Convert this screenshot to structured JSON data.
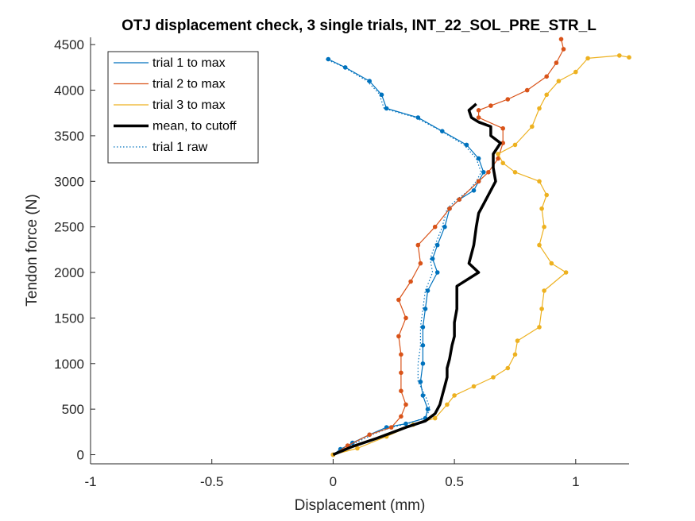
{
  "chart_data": {
    "type": "line",
    "title": "OTJ displacement check, 3 single trials, INT_22_SOL_PRE_STR_L",
    "xlabel": "Displacement (mm)",
    "ylabel": "Tendon force (N)",
    "xlim": [
      -1,
      1.22
    ],
    "ylim": [
      -100,
      4580
    ],
    "xticks": [
      -1,
      -0.5,
      0,
      0.5,
      1
    ],
    "xtick_labels": [
      "-1",
      "-0.5",
      "0",
      "0.5",
      "1"
    ],
    "yticks": [
      0,
      500,
      1000,
      1500,
      2000,
      2500,
      3000,
      3500,
      4000,
      4500
    ],
    "ytick_labels": [
      "0",
      "500",
      "1000",
      "1500",
      "2000",
      "2500",
      "3000",
      "3500",
      "4000",
      "4500"
    ],
    "grid": false,
    "legend_position": "top-left",
    "series": [
      {
        "name": "trial 1 to max",
        "color": "#0072BD",
        "style": "line-markers",
        "points": [
          [
            0,
            0
          ],
          [
            0.03,
            60
          ],
          [
            0.08,
            130
          ],
          [
            0.15,
            220
          ],
          [
            0.22,
            300
          ],
          [
            0.3,
            340
          ],
          [
            0.38,
            400
          ],
          [
            0.39,
            500
          ],
          [
            0.37,
            650
          ],
          [
            0.36,
            800
          ],
          [
            0.37,
            1000
          ],
          [
            0.37,
            1200
          ],
          [
            0.37,
            1400
          ],
          [
            0.38,
            1600
          ],
          [
            0.39,
            1800
          ],
          [
            0.43,
            2000
          ],
          [
            0.41,
            2150
          ],
          [
            0.43,
            2300
          ],
          [
            0.46,
            2500
          ],
          [
            0.48,
            2700
          ],
          [
            0.52,
            2800
          ],
          [
            0.58,
            2900
          ],
          [
            0.6,
            3000
          ],
          [
            0.62,
            3100
          ],
          [
            0.6,
            3250
          ],
          [
            0.55,
            3400
          ],
          [
            0.45,
            3550
          ],
          [
            0.35,
            3700
          ],
          [
            0.22,
            3800
          ],
          [
            0.2,
            3950
          ],
          [
            0.15,
            4100
          ],
          [
            0.05,
            4250
          ],
          [
            -0.02,
            4340
          ]
        ]
      },
      {
        "name": "trial 2 to max",
        "color": "#D95319",
        "style": "line-markers",
        "points": [
          [
            0,
            0
          ],
          [
            0.06,
            100
          ],
          [
            0.15,
            220
          ],
          [
            0.24,
            300
          ],
          [
            0.28,
            420
          ],
          [
            0.3,
            550
          ],
          [
            0.28,
            700
          ],
          [
            0.28,
            900
          ],
          [
            0.28,
            1100
          ],
          [
            0.27,
            1300
          ],
          [
            0.3,
            1500
          ],
          [
            0.27,
            1700
          ],
          [
            0.32,
            1900
          ],
          [
            0.36,
            2100
          ],
          [
            0.35,
            2300
          ],
          [
            0.42,
            2500
          ],
          [
            0.48,
            2700
          ],
          [
            0.52,
            2800
          ],
          [
            0.6,
            3000
          ],
          [
            0.64,
            3100
          ],
          [
            0.68,
            3250
          ],
          [
            0.7,
            3420
          ],
          [
            0.7,
            3580
          ],
          [
            0.6,
            3700
          ],
          [
            0.6,
            3780
          ],
          [
            0.65,
            3830
          ],
          [
            0.72,
            3900
          ],
          [
            0.8,
            4000
          ],
          [
            0.88,
            4150
          ],
          [
            0.92,
            4300
          ],
          [
            0.95,
            4450
          ],
          [
            0.94,
            4560
          ]
        ]
      },
      {
        "name": "trial 3 to max",
        "color": "#EDB120",
        "style": "line-markers",
        "points": [
          [
            0,
            0
          ],
          [
            0.1,
            70
          ],
          [
            0.22,
            200
          ],
          [
            0.33,
            330
          ],
          [
            0.42,
            400
          ],
          [
            0.47,
            550
          ],
          [
            0.5,
            650
          ],
          [
            0.58,
            750
          ],
          [
            0.66,
            850
          ],
          [
            0.72,
            950
          ],
          [
            0.75,
            1100
          ],
          [
            0.76,
            1250
          ],
          [
            0.85,
            1400
          ],
          [
            0.86,
            1600
          ],
          [
            0.87,
            1800
          ],
          [
            0.96,
            2000
          ],
          [
            0.9,
            2100
          ],
          [
            0.85,
            2300
          ],
          [
            0.87,
            2500
          ],
          [
            0.86,
            2700
          ],
          [
            0.88,
            2850
          ],
          [
            0.85,
            3000
          ],
          [
            0.75,
            3100
          ],
          [
            0.7,
            3200
          ],
          [
            0.68,
            3300
          ],
          [
            0.75,
            3400
          ],
          [
            0.82,
            3600
          ],
          [
            0.85,
            3800
          ],
          [
            0.88,
            3950
          ],
          [
            0.93,
            4100
          ],
          [
            1.0,
            4200
          ],
          [
            1.05,
            4350
          ],
          [
            1.18,
            4380
          ],
          [
            1.22,
            4360
          ]
        ]
      },
      {
        "name": "mean, to cutoff",
        "color": "#000000",
        "style": "thick-line",
        "points": [
          [
            0,
            0
          ],
          [
            0.08,
            90
          ],
          [
            0.18,
            180
          ],
          [
            0.3,
            300
          ],
          [
            0.38,
            370
          ],
          [
            0.42,
            450
          ],
          [
            0.44,
            550
          ],
          [
            0.45,
            650
          ],
          [
            0.46,
            750
          ],
          [
            0.47,
            850
          ],
          [
            0.47,
            950
          ],
          [
            0.48,
            1050
          ],
          [
            0.49,
            1200
          ],
          [
            0.5,
            1300
          ],
          [
            0.5,
            1450
          ],
          [
            0.51,
            1600
          ],
          [
            0.51,
            1750
          ],
          [
            0.51,
            1850
          ],
          [
            0.6,
            2000
          ],
          [
            0.56,
            2100
          ],
          [
            0.57,
            2200
          ],
          [
            0.58,
            2300
          ],
          [
            0.59,
            2500
          ],
          [
            0.6,
            2650
          ],
          [
            0.62,
            2750
          ],
          [
            0.65,
            2900
          ],
          [
            0.67,
            3000
          ],
          [
            0.66,
            3150
          ],
          [
            0.66,
            3300
          ],
          [
            0.69,
            3420
          ],
          [
            0.65,
            3500
          ],
          [
            0.65,
            3600
          ],
          [
            0.6,
            3650
          ],
          [
            0.57,
            3700
          ],
          [
            0.56,
            3780
          ],
          [
            0.59,
            3850
          ]
        ]
      },
      {
        "name": "trial 1 raw",
        "color": "#0072BD",
        "style": "dotted",
        "points": [
          [
            0,
            0
          ],
          [
            0.04,
            60
          ],
          [
            0.1,
            140
          ],
          [
            0.17,
            230
          ],
          [
            0.24,
            300
          ],
          [
            0.32,
            350
          ],
          [
            0.38,
            410
          ],
          [
            0.4,
            500
          ],
          [
            0.38,
            650
          ],
          [
            0.35,
            800
          ],
          [
            0.35,
            1000
          ],
          [
            0.36,
            1200
          ],
          [
            0.36,
            1400
          ],
          [
            0.37,
            1600
          ],
          [
            0.38,
            1800
          ],
          [
            0.41,
            2000
          ],
          [
            0.4,
            2150
          ],
          [
            0.42,
            2300
          ],
          [
            0.45,
            2500
          ],
          [
            0.47,
            2700
          ],
          [
            0.51,
            2800
          ],
          [
            0.56,
            2900
          ],
          [
            0.59,
            3000
          ],
          [
            0.61,
            3100
          ],
          [
            0.59,
            3250
          ],
          [
            0.54,
            3400
          ],
          [
            0.44,
            3560
          ],
          [
            0.34,
            3700
          ],
          [
            0.21,
            3800
          ],
          [
            0.19,
            3960
          ],
          [
            0.14,
            4100
          ],
          [
            0.04,
            4260
          ],
          [
            -0.03,
            4340
          ]
        ]
      }
    ]
  }
}
